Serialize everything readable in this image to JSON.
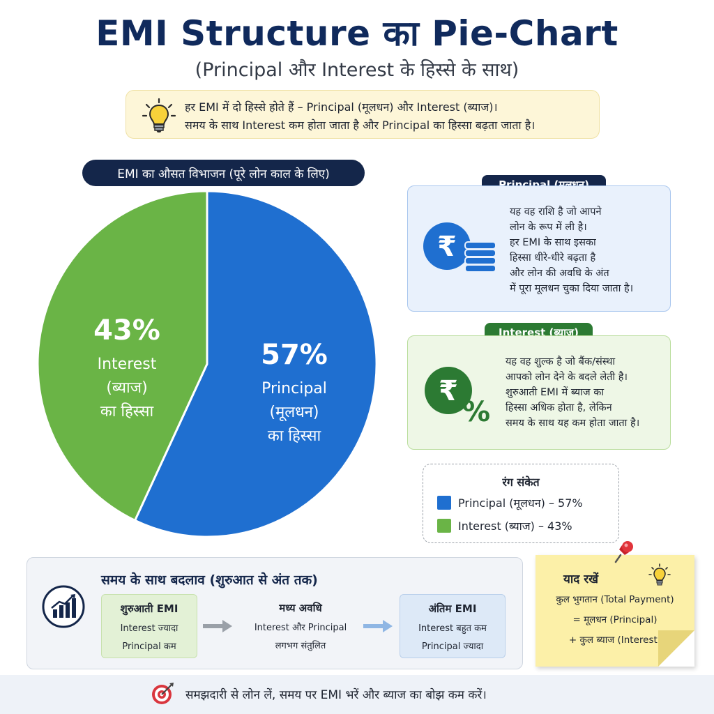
{
  "header": {
    "title": "EMI Structure का Pie-Chart",
    "subtitle": "(Principal और Interest के हिस्से के साथ)"
  },
  "info_box": {
    "icon": "lightbulb-icon",
    "line1": "हर EMI में दो हिस्से होते हैं – Principal (मूलधन) और Interest (ब्याज)।",
    "line2": "समय के साथ Interest कम होता जाता है और Principal का हिस्सा बढ़ता जाता है।"
  },
  "chart_data": {
    "type": "pie",
    "title": "EMI का औसत विभाजन (पूरे लोन काल के लिए)",
    "slices": [
      {
        "name": "Principal (मूलधन)",
        "value": 57,
        "label_pct": "57%",
        "label_lines": [
          "Principal",
          "(मूलधन)",
          "का हिस्सा"
        ],
        "color": "#1f6fd0"
      },
      {
        "name": "Interest (ब्याज)",
        "value": 43,
        "label_pct": "43%",
        "label_lines": [
          "Interest",
          "(ब्याज)",
          "का हिस्सा"
        ],
        "color": "#6ab446"
      }
    ]
  },
  "principal_card": {
    "tag": "Principal (मूलधन)",
    "icon": "rupee-coins-icon",
    "lines": [
      "यह वह राशि है जो आपने",
      "लोन के रूप में ली है।",
      "हर EMI के साथ इसका",
      "हिस्सा धीरे-धीरे बढ़ता है",
      "और लोन की अवधि के अंत",
      "में पूरा मूलधन चुका दिया जाता है।"
    ]
  },
  "interest_card": {
    "tag": "Interest (ब्याज)",
    "icon": "rupee-percent-icon",
    "lines": [
      "यह वह शुल्क है जो बैंक/संस्था",
      "आपको लोन देने के बदले लेती है।",
      "शुरुआती EMI में ब्याज का",
      "हिस्सा अधिक होता है, लेकिन",
      "समय के साथ यह कम होता जाता है।"
    ]
  },
  "legend": {
    "title": "रंग संकेत",
    "items": [
      {
        "label": "Principal (मूलधन) – 57%",
        "color": "#1f6fd0"
      },
      {
        "label": "Interest (ब्याज) – 43%",
        "color": "#6ab446"
      }
    ]
  },
  "timeline": {
    "title": "समय के साथ बदलाव (शुरुआत से अंत तक)",
    "icon": "growth-chart-icon",
    "stages": [
      {
        "title": "शुरुआती EMI",
        "line1": "Interest ज्यादा",
        "line2": "Principal कम"
      },
      {
        "title": "मध्य अवधि",
        "line1": "Interest और Principal",
        "line2": "लगभग संतुलित"
      },
      {
        "title": "अंतिम EMI",
        "line1": "Interest बहुत कम",
        "line2": "Principal ज्यादा"
      }
    ]
  },
  "note": {
    "title": "याद रखें",
    "line1": "कुल भुगतान (Total Payment)",
    "line2": "= मूलधन (Principal)",
    "line3": "+ कुल ब्याज (Interest)"
  },
  "footer": {
    "icon": "target-icon",
    "text": "समझदारी से लोन लें, समय पर EMI भरें और ब्याज का बोझ कम करें।"
  }
}
